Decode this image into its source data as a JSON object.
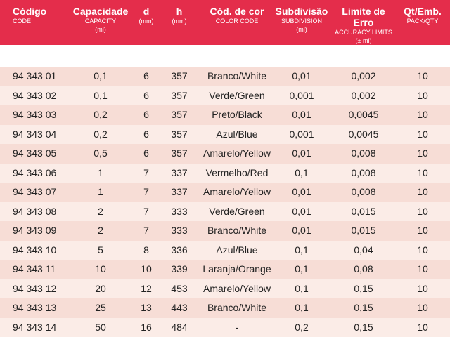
{
  "header": {
    "code": {
      "main": "Código",
      "sub": "CODE"
    },
    "capacity": {
      "main": "Capacidade",
      "sub1": "CAPACITY",
      "sub2": "(ml)"
    },
    "d": {
      "main": "d",
      "sub": "(mm)"
    },
    "h": {
      "main": "h",
      "sub": "(mm)"
    },
    "color": {
      "main": "Cód. de cor",
      "sub": "COLOR CODE"
    },
    "subdivision": {
      "main": "Subdivisão",
      "sub1": "SUBDIVISION",
      "sub2": "(ml)"
    },
    "limit": {
      "main": "Limite de Erro",
      "sub1": "ACCURACY LIMITS",
      "sub2": "(± ml)"
    },
    "qty": {
      "main": "Qt/Emb.",
      "sub": "PACK/QTY"
    }
  },
  "colors": {
    "header_bg": "#e42d4b",
    "row_dark": "#f7ddd6",
    "row_light": "#fbece7"
  },
  "rows": [
    {
      "code": "94 343 01",
      "capacity": "0,1",
      "d": "6",
      "h": "357",
      "color": "Branco/White",
      "subdivision": "0,01",
      "limit": "0,002",
      "qty": "10"
    },
    {
      "code": "94 343 02",
      "capacity": "0,1",
      "d": "6",
      "h": "357",
      "color": "Verde/Green",
      "subdivision": "0,001",
      "limit": "0,002",
      "qty": "10"
    },
    {
      "code": "94 343 03",
      "capacity": "0,2",
      "d": "6",
      "h": "357",
      "color": "Preto/Black",
      "subdivision": "0,01",
      "limit": "0,0045",
      "qty": "10"
    },
    {
      "code": "94 343 04",
      "capacity": "0,2",
      "d": "6",
      "h": "357",
      "color": "Azul/Blue",
      "subdivision": "0,001",
      "limit": "0,0045",
      "qty": "10"
    },
    {
      "code": "94 343 05",
      "capacity": "0,5",
      "d": "6",
      "h": "357",
      "color": "Amarelo/Yellow",
      "subdivision": "0,01",
      "limit": "0,008",
      "qty": "10"
    },
    {
      "code": "94 343 06",
      "capacity": "1",
      "d": "7",
      "h": "337",
      "color": "Vermelho/Red",
      "subdivision": "0,1",
      "limit": "0,008",
      "qty": "10"
    },
    {
      "code": "94 343 07",
      "capacity": "1",
      "d": "7",
      "h": "337",
      "color": "Amarelo/Yellow",
      "subdivision": "0,01",
      "limit": "0,008",
      "qty": "10"
    },
    {
      "code": "94 343 08",
      "capacity": "2",
      "d": "7",
      "h": "333",
      "color": "Verde/Green",
      "subdivision": "0,01",
      "limit": "0,015",
      "qty": "10"
    },
    {
      "code": "94 343 09",
      "capacity": "2",
      "d": "7",
      "h": "333",
      "color": "Branco/White",
      "subdivision": "0,01",
      "limit": "0,015",
      "qty": "10"
    },
    {
      "code": "94 343 10",
      "capacity": "5",
      "d": "8",
      "h": "336",
      "color": "Azul/Blue",
      "subdivision": "0,1",
      "limit": "0,04",
      "qty": "10"
    },
    {
      "code": "94 343 11",
      "capacity": "10",
      "d": "10",
      "h": "339",
      "color": "Laranja/Orange",
      "subdivision": "0,1",
      "limit": "0,08",
      "qty": "10"
    },
    {
      "code": "94 343 12",
      "capacity": "20",
      "d": "12",
      "h": "453",
      "color": "Amarelo/Yellow",
      "subdivision": "0,1",
      "limit": "0,15",
      "qty": "10"
    },
    {
      "code": "94 343 13",
      "capacity": "25",
      "d": "13",
      "h": "443",
      "color": "Branco/White",
      "subdivision": "0,1",
      "limit": "0,15",
      "qty": "10"
    },
    {
      "code": "94 343 14",
      "capacity": "50",
      "d": "16",
      "h": "484",
      "color": "-",
      "subdivision": "0,2",
      "limit": "0,15",
      "qty": "10"
    }
  ]
}
